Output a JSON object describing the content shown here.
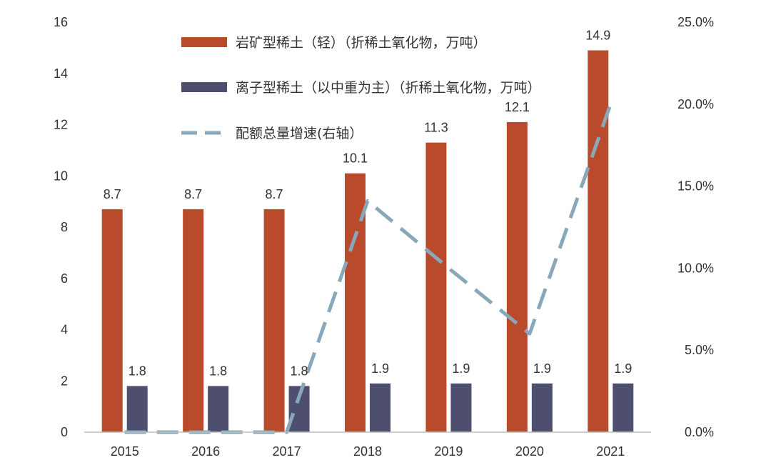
{
  "chart_data": {
    "type": "bar",
    "categories": [
      "2015",
      "2016",
      "2017",
      "2018",
      "2019",
      "2020",
      "2021"
    ],
    "series": [
      {
        "name": "岩矿型稀土（轻）（折稀土氧化物，万吨）",
        "type": "bar",
        "axis": "left",
        "color": "#b94a2c",
        "values": [
          8.7,
          8.7,
          8.7,
          10.1,
          11.3,
          12.1,
          14.9
        ],
        "labels": [
          "8.7",
          "8.7",
          "8.7",
          "10.1",
          "11.3",
          "12.1",
          "14.9"
        ]
      },
      {
        "name": "离子型稀土（以中重为主）（折稀土氧化物，万吨）",
        "type": "bar",
        "axis": "left",
        "color": "#4e4f6e",
        "values": [
          1.8,
          1.8,
          1.8,
          1.9,
          1.9,
          1.9,
          1.9
        ],
        "labels": [
          "1.8",
          "1.8",
          "1.8",
          "1.9",
          "1.9",
          "1.9",
          "1.9"
        ]
      },
      {
        "name": "配额总量增速(右轴）",
        "type": "line",
        "style": "dashed",
        "axis": "right",
        "color": "#88a8ba",
        "values": [
          0.0,
          0.0,
          0.0,
          14.1,
          10.0,
          6.0,
          20.0
        ]
      }
    ],
    "y_left": {
      "ticks": [
        "0",
        "2",
        "4",
        "6",
        "8",
        "10",
        "12",
        "14",
        "16"
      ],
      "ylim": [
        0,
        16
      ]
    },
    "y_right": {
      "ticks": [
        "0.0%",
        "5.0%",
        "10.0%",
        "15.0%",
        "20.0%",
        "25.0%"
      ],
      "ylim": [
        0,
        25
      ]
    },
    "legend_position": "top-center",
    "grid": false
  }
}
